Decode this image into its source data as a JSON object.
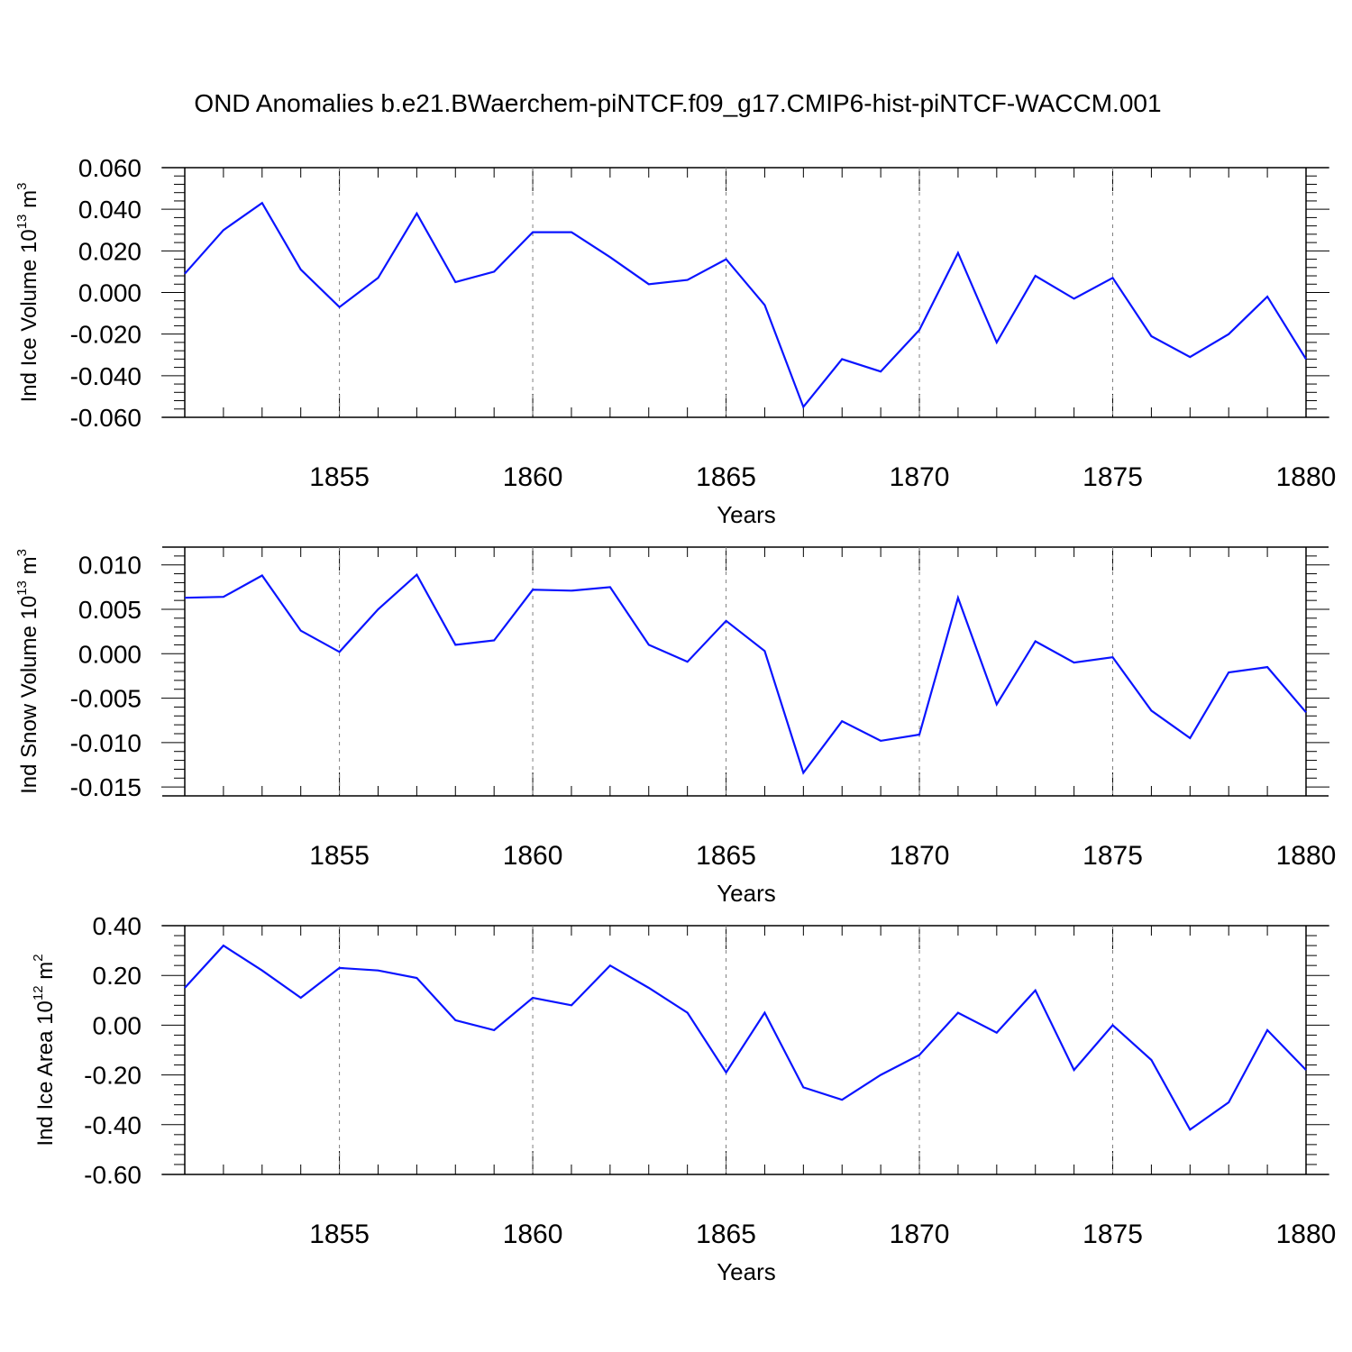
{
  "title": "OND Anomalies b.e21.BWaerchem-piNTCF.f09_g17.CMIP6-hist-piNTCF-WACCM.001",
  "colors": {
    "line": "#0a14ff",
    "axes": "#000000",
    "grid": "#808080"
  },
  "chart_data": [
    {
      "type": "line",
      "ylabel": {
        "text": "Ind Ice Volume 10",
        "exp": "13",
        "unit": " m",
        "unit_exp": "3"
      },
      "xlabel": "Years",
      "xlim": [
        1851,
        1880
      ],
      "ylim": [
        -0.06,
        0.06
      ],
      "xticks": [
        "1855",
        "1860",
        "1865",
        "1870",
        "1875",
        "1880"
      ],
      "yticks": [
        "0.060",
        "0.040",
        "0.020",
        "0.000",
        "-0.020",
        "-0.040",
        "-0.060"
      ],
      "grid": "vertical dashed at major x ticks",
      "series": [
        {
          "x": [
            1851,
            1852,
            1853,
            1854,
            1855,
            1856,
            1857,
            1858,
            1859,
            1860,
            1861,
            1862,
            1863,
            1864,
            1865,
            1866,
            1867,
            1868,
            1869,
            1870,
            1871,
            1872,
            1873,
            1874,
            1875,
            1876,
            1877,
            1878,
            1879,
            1880
          ],
          "values": [
            0.009,
            0.03,
            0.043,
            0.011,
            -0.007,
            0.007,
            0.038,
            0.005,
            0.01,
            0.029,
            0.029,
            0.017,
            0.004,
            0.006,
            0.016,
            -0.006,
            -0.055,
            -0.032,
            -0.038,
            -0.018,
            0.019,
            -0.024,
            0.008,
            -0.003,
            0.007,
            -0.021,
            -0.031,
            -0.02,
            -0.002,
            -0.032
          ]
        }
      ]
    },
    {
      "type": "line",
      "ylabel": {
        "text": "Ind Snow Volume 10",
        "exp": "13",
        "unit": " m",
        "unit_exp": "3"
      },
      "xlabel": "Years",
      "xlim": [
        1851,
        1880
      ],
      "ylim": [
        -0.016,
        0.012
      ],
      "xticks": [
        "1855",
        "1860",
        "1865",
        "1870",
        "1875",
        "1880"
      ],
      "yticks": [
        "0.010",
        "0.005",
        "0.000",
        "-0.005",
        "-0.010",
        "-0.015"
      ],
      "grid": "vertical dashed at major x ticks",
      "series": [
        {
          "x": [
            1851,
            1852,
            1853,
            1854,
            1855,
            1856,
            1857,
            1858,
            1859,
            1860,
            1861,
            1862,
            1863,
            1864,
            1865,
            1866,
            1867,
            1868,
            1869,
            1870,
            1871,
            1872,
            1873,
            1874,
            1875,
            1876,
            1877,
            1878,
            1879,
            1880
          ],
          "values": [
            0.0063,
            0.0064,
            0.0088,
            0.0026,
            0.0002,
            0.005,
            0.0089,
            0.001,
            0.0015,
            0.0072,
            0.0071,
            0.0075,
            0.001,
            -0.0009,
            0.0037,
            0.0003,
            -0.0134,
            -0.0076,
            -0.0098,
            -0.0091,
            0.0063,
            -0.0057,
            0.0014,
            -0.001,
            -0.0004,
            -0.0064,
            -0.0095,
            -0.0021,
            -0.0015,
            -0.0066
          ]
        }
      ]
    },
    {
      "type": "line",
      "ylabel": {
        "text": "Ind Ice Area 10",
        "exp": "12",
        "unit": " m",
        "unit_exp": "2"
      },
      "xlabel": "Years",
      "xlim": [
        1851,
        1880
      ],
      "ylim": [
        -0.6,
        0.4
      ],
      "xticks": [
        "1855",
        "1860",
        "1865",
        "1870",
        "1875",
        "1880"
      ],
      "yticks": [
        "0.40",
        "0.20",
        "0.00",
        "-0.20",
        "-0.40",
        "-0.60"
      ],
      "grid": "vertical dashed at major x ticks",
      "series": [
        {
          "x": [
            1851,
            1852,
            1853,
            1854,
            1855,
            1856,
            1857,
            1858,
            1859,
            1860,
            1861,
            1862,
            1863,
            1864,
            1865,
            1866,
            1867,
            1868,
            1869,
            1870,
            1871,
            1872,
            1873,
            1874,
            1875,
            1876,
            1877,
            1878,
            1879,
            1880
          ],
          "values": [
            0.15,
            0.32,
            0.22,
            0.11,
            0.23,
            0.22,
            0.19,
            0.02,
            -0.02,
            0.11,
            0.08,
            0.24,
            0.15,
            0.05,
            -0.19,
            0.05,
            -0.25,
            -0.3,
            -0.2,
            -0.12,
            0.05,
            -0.03,
            0.14,
            -0.18,
            0.0,
            -0.14,
            -0.42,
            -0.31,
            -0.02,
            -0.18
          ]
        }
      ]
    }
  ]
}
